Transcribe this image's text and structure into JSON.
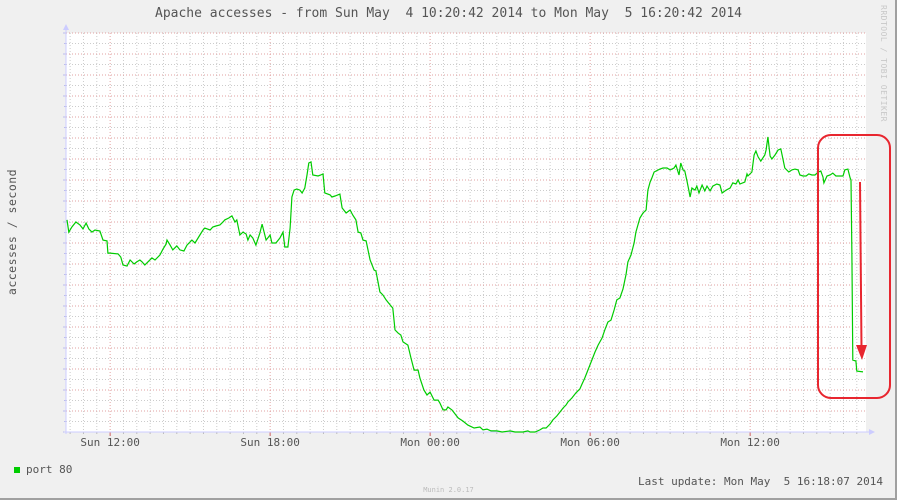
{
  "watermark": "RRDTOOL / TOBI OETIKER",
  "footer": {
    "version": "Munin 2.0.17",
    "last_update": "Last update: Mon May  5 16:18:07 2014"
  },
  "colors": {
    "series": "#00cc00",
    "annotation": "#e8262f",
    "major_grid": "#e0a0a0",
    "minor_grid": "#cccccc"
  },
  "annotation": {
    "type": "rounded-box-with-down-arrow",
    "highlights": "final drop"
  },
  "chart_data": {
    "type": "line",
    "title": "Apache accesses - from Sun May  4 10:20:42 2014 to Mon May  5 16:20:42 2014",
    "xlabel": "",
    "ylabel": "accesses / second",
    "xlim": [
      "Sun 10:20:42",
      "Mon 16:20:42"
    ],
    "y_tick_labels": "none shown",
    "ylim": [
      0,
      19
    ],
    "grid": true,
    "legend_position": "bottom-left",
    "x_ticks": [
      "Sun 12:00",
      "Sun 18:00",
      "Mon 00:00",
      "Mon 06:00",
      "Mon 12:00"
    ],
    "series": [
      {
        "name": "port 80",
        "color": "#00cc00",
        "points": [
          [
            "Sun 10:23",
            10.1
          ],
          [
            "Sun 10:27",
            9.52
          ],
          [
            "Sun 10:34",
            9.76
          ],
          [
            "Sun 10:43",
            10.0
          ],
          [
            "Sun 10:52",
            9.86
          ],
          [
            "Sun 10:59",
            9.67
          ],
          [
            "Sun 11:06",
            9.95
          ],
          [
            "Sun 11:12",
            9.67
          ],
          [
            "Sun 11:19",
            9.52
          ],
          [
            "Sun 11:26",
            9.62
          ],
          [
            "Sun 11:37",
            9.57
          ],
          [
            "Sun 11:44",
            9.14
          ],
          [
            "Sun 11:53",
            9.1
          ],
          [
            "Sun 11:55",
            8.52
          ],
          [
            "Sun 12:00",
            8.52
          ],
          [
            "Sun 12:18",
            8.48
          ],
          [
            "Sun 12:24",
            8.33
          ],
          [
            "Sun 12:29",
            7.95
          ],
          [
            "Sun 12:38",
            7.9
          ],
          [
            "Sun 12:45",
            8.19
          ],
          [
            "Sun 12:54",
            8.0
          ],
          [
            "Sun 13:00",
            8.1
          ],
          [
            "Sun 13:07",
            8.19
          ],
          [
            "Sun 13:12",
            8.1
          ],
          [
            "Sun 13:18",
            7.95
          ],
          [
            "Sun 13:25",
            8.1
          ],
          [
            "Sun 13:34",
            8.29
          ],
          [
            "Sun 13:41",
            8.19
          ],
          [
            "Sun 13:52",
            8.43
          ],
          [
            "Sun 13:59",
            8.71
          ],
          [
            "Sun 14:06",
            8.95
          ],
          [
            "Sun 14:08",
            9.14
          ],
          [
            "Sun 14:15",
            8.9
          ],
          [
            "Sun 14:21",
            8.67
          ],
          [
            "Sun 14:30",
            8.86
          ],
          [
            "Sun 14:37",
            8.67
          ],
          [
            "Sun 14:46",
            8.62
          ],
          [
            "Sun 14:53",
            8.9
          ],
          [
            "Sun 15:00",
            9.05
          ],
          [
            "Sun 15:04",
            9.14
          ],
          [
            "Sun 15:11",
            9.0
          ],
          [
            "Sun 15:22",
            9.38
          ],
          [
            "Sun 15:29",
            9.62
          ],
          [
            "Sun 15:33",
            9.71
          ],
          [
            "Sun 15:45",
            9.62
          ],
          [
            "Sun 15:51",
            9.76
          ],
          [
            "Sun 15:58",
            9.81
          ],
          [
            "Sun 16:07",
            9.86
          ],
          [
            "Sun 16:14",
            10.0
          ],
          [
            "Sun 16:18",
            10.1
          ],
          [
            "Sun 16:27",
            10.19
          ],
          [
            "Sun 16:34",
            10.29
          ],
          [
            "Sun 16:41",
            10.0
          ],
          [
            "Sun 16:45",
            10.1
          ],
          [
            "Sun 16:52",
            9.38
          ],
          [
            "Sun 16:59",
            9.52
          ],
          [
            "Sun 17:06",
            9.43
          ],
          [
            "Sun 17:10",
            9.14
          ],
          [
            "Sun 17:15",
            9.38
          ],
          [
            "Sun 17:21",
            9.24
          ],
          [
            "Sun 17:28",
            8.9
          ],
          [
            "Sun 17:37",
            9.48
          ],
          [
            "Sun 17:42",
            9.9
          ],
          [
            "Sun 17:51",
            9.14
          ],
          [
            "Sun 18:00",
            9.38
          ],
          [
            "Sun 18:04",
            9.0
          ],
          [
            "Sun 18:13",
            9.0
          ],
          [
            "Sun 18:22",
            9.24
          ],
          [
            "Sun 18:29",
            9.52
          ],
          [
            "Sun 18:33",
            8.81
          ],
          [
            "Sun 18:40",
            8.81
          ],
          [
            "Sun 18:45",
            9.71
          ],
          [
            "Sun 18:49",
            11.19
          ],
          [
            "Sun 18:54",
            11.52
          ],
          [
            "Sun 19:00",
            11.57
          ],
          [
            "Sun 19:07",
            11.52
          ],
          [
            "Sun 19:12",
            11.38
          ],
          [
            "Sun 19:18",
            11.62
          ],
          [
            "Sun 19:23",
            12.24
          ],
          [
            "Sun 19:27",
            12.81
          ],
          [
            "Sun 19:32",
            12.86
          ],
          [
            "Sun 19:36",
            12.24
          ],
          [
            "Sun 19:48",
            12.19
          ],
          [
            "Sun 19:54",
            12.24
          ],
          [
            "Sun 19:59",
            12.29
          ],
          [
            "Sun 20:03",
            11.38
          ],
          [
            "Sun 20:15",
            11.29
          ],
          [
            "Sun 20:19",
            11.19
          ],
          [
            "Sun 20:26",
            11.24
          ],
          [
            "Sun 20:37",
            11.33
          ],
          [
            "Sun 20:42",
            10.67
          ],
          [
            "Sun 20:51",
            10.43
          ],
          [
            "Sun 21:00",
            10.57
          ],
          [
            "Sun 21:06",
            10.33
          ],
          [
            "Sun 21:13",
            10.1
          ],
          [
            "Sun 21:18",
            9.52
          ],
          [
            "Sun 21:24",
            9.48
          ],
          [
            "Sun 21:29",
            9.14
          ],
          [
            "Sun 21:36",
            9.1
          ],
          [
            "Sun 21:45",
            8.19
          ],
          [
            "Sun 21:54",
            7.71
          ],
          [
            "Sun 21:58",
            7.67
          ],
          [
            "Sun 22:07",
            6.67
          ],
          [
            "Sun 22:14",
            6.52
          ],
          [
            "Sun 22:21",
            6.29
          ],
          [
            "Sun 22:30",
            6.05
          ],
          [
            "Sun 22:36",
            5.9
          ],
          [
            "Sun 22:41",
            4.86
          ],
          [
            "Sun 22:48",
            4.71
          ],
          [
            "Sun 22:54",
            4.62
          ],
          [
            "Sun 22:59",
            4.29
          ],
          [
            "Sun 23:10",
            4.14
          ],
          [
            "Sun 23:17",
            3.52
          ],
          [
            "Sun 23:24",
            2.95
          ],
          [
            "Sun 23:33",
            2.95
          ],
          [
            "Sun 23:37",
            2.57
          ],
          [
            "Sun 23:46",
            2.0
          ],
          [
            "Sun 23:53",
            1.76
          ],
          [
            "Mon 00:00",
            1.9
          ],
          [
            "Mon 00:09",
            1.52
          ],
          [
            "Mon 00:18",
            1.52
          ],
          [
            "Mon 00:22",
            1.38
          ],
          [
            "Mon 00:29",
            1.05
          ],
          [
            "Mon 00:36",
            1.05
          ],
          [
            "Mon 00:40",
            1.19
          ],
          [
            "Mon 00:49",
            1.05
          ],
          [
            "Mon 00:56",
            0.86
          ],
          [
            "Mon 01:03",
            0.67
          ],
          [
            "Mon 01:14",
            0.52
          ],
          [
            "Mon 01:25",
            0.33
          ],
          [
            "Mon 01:39",
            0.19
          ],
          [
            "Mon 01:52",
            0.24
          ],
          [
            "Mon 01:59",
            0.1
          ],
          [
            "Mon 02:08",
            0.14
          ],
          [
            "Mon 02:17",
            0.05
          ],
          [
            "Mon 02:30",
            0.05
          ],
          [
            "Mon 02:42",
            0.0
          ],
          [
            "Mon 03:00",
            0.05
          ],
          [
            "Mon 03:11",
            0.0
          ],
          [
            "Mon 03:22",
            0.0
          ],
          [
            "Mon 03:29",
            0.0
          ],
          [
            "Mon 03:40",
            0.05
          ],
          [
            "Mon 03:45",
            0.0
          ],
          [
            "Mon 03:56",
            0.0
          ],
          [
            "Mon 04:07",
            0.1
          ],
          [
            "Mon 04:14",
            0.19
          ],
          [
            "Mon 04:21",
            0.19
          ],
          [
            "Mon 04:30",
            0.38
          ],
          [
            "Mon 04:36",
            0.57
          ],
          [
            "Mon 04:45",
            0.76
          ],
          [
            "Mon 04:52",
            0.95
          ],
          [
            "Mon 04:59",
            1.14
          ],
          [
            "Mon 05:06",
            1.29
          ],
          [
            "Mon 05:10",
            1.43
          ],
          [
            "Mon 05:19",
            1.62
          ],
          [
            "Mon 05:28",
            1.86
          ],
          [
            "Mon 05:37",
            2.05
          ],
          [
            "Mon 05:42",
            2.29
          ],
          [
            "Mon 05:48",
            2.57
          ],
          [
            "Mon 05:55",
            2.95
          ],
          [
            "Mon 06:04",
            3.43
          ],
          [
            "Mon 06:11",
            3.81
          ],
          [
            "Mon 06:18",
            4.14
          ],
          [
            "Mon 06:27",
            4.48
          ],
          [
            "Mon 06:33",
            4.86
          ],
          [
            "Mon 06:40",
            5.24
          ],
          [
            "Mon 06:47",
            5.33
          ],
          [
            "Mon 06:54",
            5.81
          ],
          [
            "Mon 07:00",
            6.29
          ],
          [
            "Mon 07:07",
            6.38
          ],
          [
            "Mon 07:14",
            6.81
          ],
          [
            "Mon 07:21",
            7.52
          ],
          [
            "Mon 07:25",
            8.1
          ],
          [
            "Mon 07:32",
            8.43
          ],
          [
            "Mon 07:39",
            9.0
          ],
          [
            "Mon 07:43",
            9.52
          ],
          [
            "Mon 07:52",
            10.19
          ],
          [
            "Mon 07:59",
            10.43
          ],
          [
            "Mon 08:06",
            10.57
          ],
          [
            "Mon 08:08",
            11.05
          ],
          [
            "Mon 08:10",
            11.52
          ],
          [
            "Mon 08:15",
            11.9
          ],
          [
            "Mon 08:19",
            12.1
          ],
          [
            "Mon 08:24",
            12.38
          ],
          [
            "Mon 08:37",
            12.52
          ],
          [
            "Mon 08:44",
            12.57
          ],
          [
            "Mon 08:53",
            12.57
          ],
          [
            "Mon 09:00",
            12.48
          ],
          [
            "Mon 09:09",
            12.57
          ],
          [
            "Mon 09:13",
            12.71
          ],
          [
            "Mon 09:20",
            12.24
          ],
          [
            "Mon 09:24",
            12.81
          ],
          [
            "Mon 09:29",
            12.48
          ],
          [
            "Mon 09:33",
            12.43
          ],
          [
            "Mon 09:38",
            11.95
          ],
          [
            "Mon 09:42",
            11.52
          ],
          [
            "Mon 09:45",
            11.19
          ],
          [
            "Mon 09:49",
            11.62
          ],
          [
            "Mon 09:56",
            11.52
          ],
          [
            "Mon 10:00",
            11.71
          ],
          [
            "Mon 10:05",
            11.38
          ],
          [
            "Mon 10:12",
            11.76
          ],
          [
            "Mon 10:18",
            11.48
          ],
          [
            "Mon 10:23",
            11.71
          ],
          [
            "Mon 10:30",
            11.48
          ],
          [
            "Mon 10:36",
            11.71
          ],
          [
            "Mon 10:45",
            11.81
          ],
          [
            "Mon 10:52",
            11.76
          ],
          [
            "Mon 10:57",
            11.38
          ],
          [
            "Mon 11:06",
            11.52
          ],
          [
            "Mon 11:15",
            11.62
          ],
          [
            "Mon 11:21",
            11.86
          ],
          [
            "Mon 11:28",
            11.81
          ],
          [
            "Mon 11:33",
            12.0
          ],
          [
            "Mon 11:37",
            11.81
          ],
          [
            "Mon 11:48",
            11.9
          ],
          [
            "Mon 11:53",
            12.29
          ],
          [
            "Mon 11:55",
            12.19
          ],
          [
            "Mon 12:04",
            12.38
          ],
          [
            "Mon 12:09",
            13.19
          ],
          [
            "Mon 12:13",
            13.38
          ],
          [
            "Mon 12:18",
            13.1
          ],
          [
            "Mon 12:24",
            12.9
          ],
          [
            "Mon 12:33",
            13.19
          ],
          [
            "Mon 12:36",
            13.43
          ],
          [
            "Mon 12:40",
            14.05
          ],
          [
            "Mon 12:45",
            13.14
          ],
          [
            "Mon 12:49",
            13.0
          ],
          [
            "Mon 12:56",
            13.19
          ],
          [
            "Mon 13:03",
            13.43
          ],
          [
            "Mon 13:09",
            13.48
          ],
          [
            "Mon 13:12",
            13.19
          ],
          [
            "Mon 13:18",
            12.57
          ],
          [
            "Mon 13:27",
            12.38
          ],
          [
            "Mon 13:34",
            12.48
          ],
          [
            "Mon 13:41",
            12.52
          ],
          [
            "Mon 13:48",
            12.48
          ],
          [
            "Mon 13:52",
            12.24
          ],
          [
            "Mon 13:59",
            12.19
          ],
          [
            "Mon 14:06",
            12.19
          ],
          [
            "Mon 14:12",
            12.29
          ],
          [
            "Mon 14:19",
            12.24
          ],
          [
            "Mon 14:26",
            12.24
          ],
          [
            "Mon 14:33",
            12.38
          ],
          [
            "Mon 14:39",
            12.43
          ],
          [
            "Mon 14:44",
            12.14
          ],
          [
            "Mon 14:46",
            11.86
          ],
          [
            "Mon 14:53",
            12.19
          ],
          [
            "Mon 15:00",
            12.24
          ],
          [
            "Mon 15:06",
            12.33
          ],
          [
            "Mon 15:13",
            12.19
          ],
          [
            "Mon 15:22",
            12.19
          ],
          [
            "Mon 15:29",
            12.19
          ],
          [
            "Mon 15:33",
            12.48
          ],
          [
            "Mon 15:40",
            12.52
          ],
          [
            "Mon 15:45",
            12.1
          ],
          [
            "Mon 15:47",
            12.0
          ],
          [
            "Mon 15:49",
            8.43
          ],
          [
            "Mon 15:51",
            3.43
          ],
          [
            "Mon 15:58",
            3.38
          ],
          [
            "Mon 16:00",
            2.9
          ],
          [
            "Mon 16:14",
            2.86
          ]
        ]
      }
    ]
  }
}
